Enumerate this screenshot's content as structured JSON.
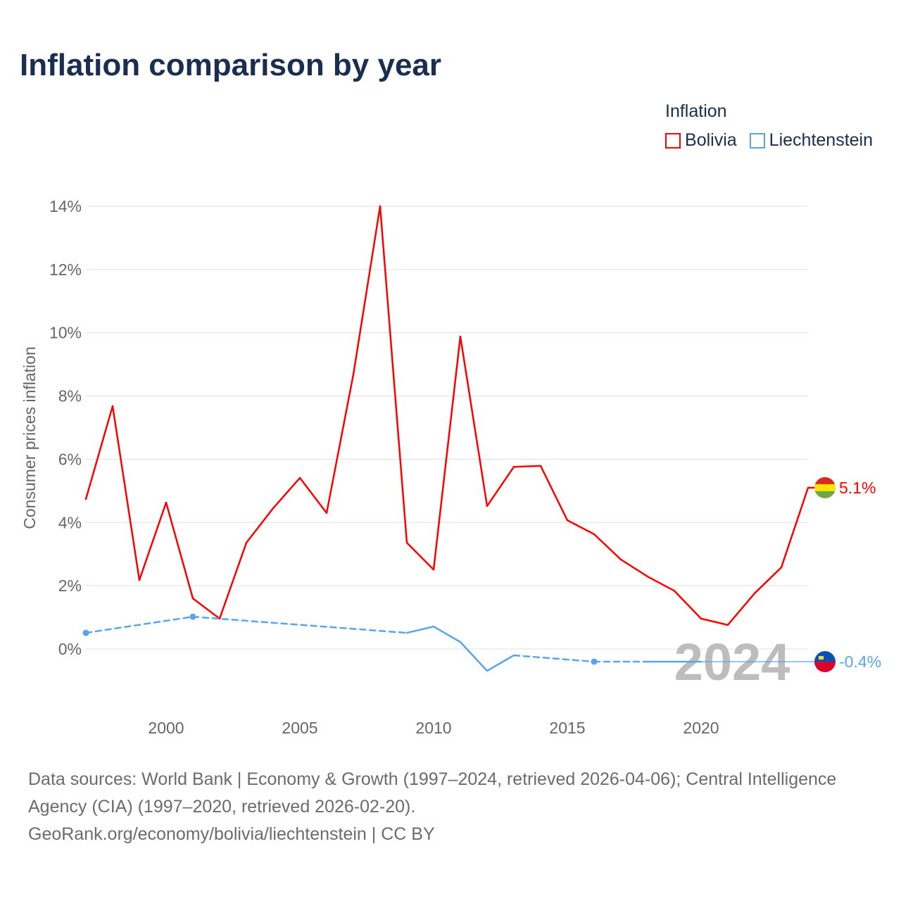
{
  "title": "Inflation comparison by year",
  "legend": {
    "title": "Inflation",
    "items": [
      {
        "name": "Bolivia",
        "color": "#ff0000"
      },
      {
        "name": "Liechtenstein",
        "color": "#5aa5ea"
      }
    ]
  },
  "chart_data": {
    "type": "line",
    "title": "Inflation comparison by year",
    "xlabel": "",
    "ylabel": "Consumer prices inflation",
    "xlim": [
      1997,
      2024
    ],
    "ylim": [
      -2,
      14
    ],
    "xticks": [
      2000,
      2005,
      2010,
      2015,
      2020
    ],
    "yticks": [
      0,
      2,
      4,
      6,
      8,
      10,
      12,
      14
    ],
    "ytick_labels": [
      "0%",
      "2%",
      "4%",
      "6%",
      "8%",
      "10%",
      "12%",
      "14%"
    ],
    "grid": true,
    "legend_position": "top-right",
    "year_watermark": "2024",
    "series": [
      {
        "name": "Bolivia",
        "color": "#ff0000",
        "end_label": "5.1%",
        "flag_colors": [
          "#d52b1e",
          "#f9e300",
          "#6ea64a"
        ],
        "x": [
          1997,
          1998,
          1999,
          2000,
          2001,
          2002,
          2003,
          2004,
          2005,
          2006,
          2007,
          2008,
          2009,
          2010,
          2011,
          2012,
          2013,
          2014,
          2015,
          2016,
          2017,
          2018,
          2019,
          2020,
          2021,
          2022,
          2023,
          2024
        ],
        "y": [
          4.74,
          7.68,
          2.18,
          4.63,
          1.6,
          0.96,
          3.36,
          4.45,
          5.41,
          4.3,
          8.68,
          14.0,
          3.36,
          2.51,
          9.88,
          4.52,
          5.76,
          5.79,
          4.07,
          3.63,
          2.83,
          2.29,
          1.84,
          0.96,
          0.76,
          1.76,
          2.58,
          5.1
        ]
      },
      {
        "name": "Liechtenstein",
        "color": "#5aa5ea",
        "end_label": "-0.4%",
        "flag_colors": [
          "#0a52b2",
          "#d9002b"
        ],
        "x": [
          1997,
          2001,
          2009,
          2010,
          2011,
          2012,
          2013,
          2016,
          2018,
          2019,
          2020
        ],
        "y": [
          0.51,
          1.02,
          0.51,
          0.71,
          0.22,
          -0.69,
          -0.2,
          -0.4,
          -0.4,
          -0.4,
          -0.4
        ]
      }
    ]
  },
  "footer": {
    "sources": "Data sources: World Bank | Economy & Growth (1997–2024, retrieved 2026-04-06); Central Intelligence Agency (CIA) (1997–2020, retrieved 2026-02-20).",
    "link": "GeoRank.org/economy/bolivia/liechtenstein | CC BY"
  }
}
